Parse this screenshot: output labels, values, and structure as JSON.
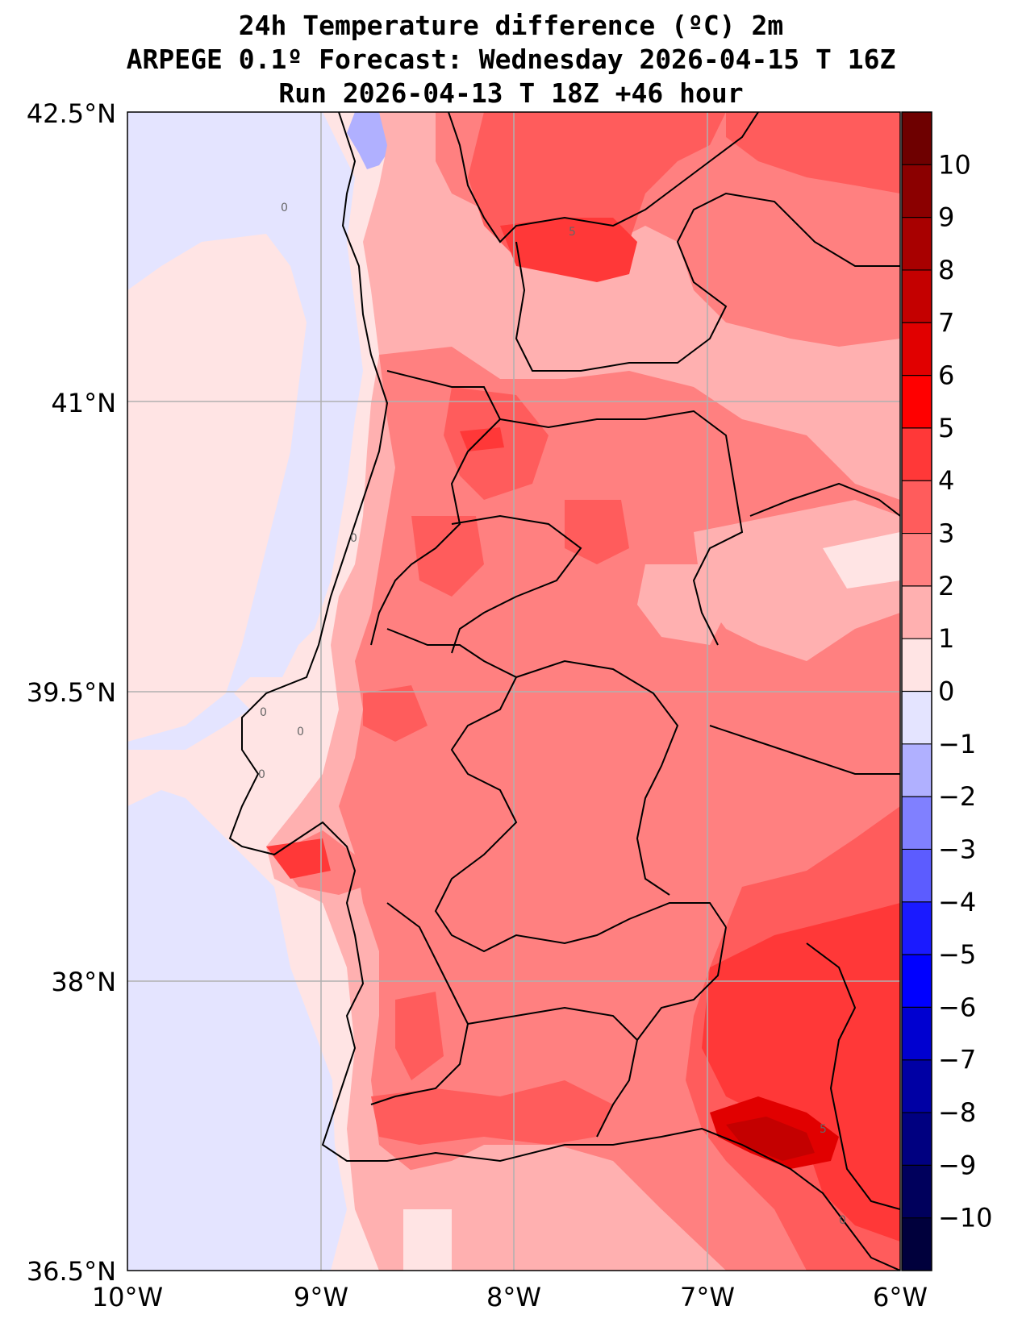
{
  "title": {
    "line1": "24h Temperature difference (ºC) 2m",
    "line2": "ARPEGE 0.1º Forecast: Wednesday 2026-04-15 T 16Z",
    "line3": "Run 2026-04-13 T 18Z +46 hour"
  },
  "map": {
    "lat_ticks": [
      "42.5°N",
      "41°N",
      "39.5°N",
      "38°N",
      "36.5°N"
    ],
    "lon_ticks": [
      "10°W",
      "9°W",
      "8°W",
      "7°W",
      "6°W"
    ],
    "contour_labels": [
      "0",
      "0",
      "0",
      "0",
      "0",
      "0",
      "5",
      "5"
    ]
  },
  "colorbar": {
    "labels": [
      "10",
      "9",
      "8",
      "7",
      "6",
      "5",
      "4",
      "3",
      "2",
      "1",
      "0",
      "−1",
      "−2",
      "−3",
      "−4",
      "−5",
      "−6",
      "−7",
      "−8",
      "−9",
      "−10"
    ],
    "colors": [
      "#6e0000",
      "#8b0000",
      "#a80000",
      "#c40000",
      "#e10000",
      "#ff0000",
      "#ff3838",
      "#ff5c5c",
      "#ff8080",
      "#ffb0b0",
      "#ffe4e4",
      "#e4e4ff",
      "#b0b0ff",
      "#8080ff",
      "#5c5cff",
      "#1a1aff",
      "#0000ff",
      "#0000d0",
      "#0000a4",
      "#000080",
      "#00005c",
      "#00003c"
    ]
  }
}
